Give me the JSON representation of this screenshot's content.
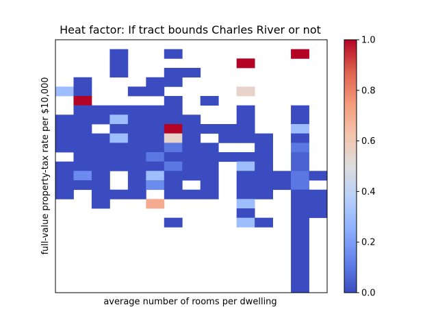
{
  "chart_data": {
    "type": "heatmap",
    "title": "Heat factor: If tract bounds Charles River or not",
    "xlabel": "average number of rooms per dwelling",
    "ylabel": "full-value property-tax rate per $10,000",
    "x_ticks_visible": false,
    "y_ticks_visible": false,
    "n_cols": 15,
    "n_rows": 27,
    "row_order": "top-to-bottom",
    "empty_value": null,
    "grid": [
      [
        null,
        null,
        null,
        null,
        null,
        null,
        null,
        null,
        null,
        null,
        null,
        null,
        null,
        null,
        null
      ],
      [
        null,
        null,
        null,
        0.0,
        null,
        null,
        0.0,
        null,
        null,
        null,
        null,
        null,
        null,
        1.0,
        null
      ],
      [
        null,
        null,
        null,
        0.0,
        null,
        null,
        null,
        null,
        null,
        null,
        1.0,
        null,
        null,
        null,
        null
      ],
      [
        null,
        null,
        null,
        0.0,
        null,
        null,
        0.0,
        0.0,
        null,
        null,
        null,
        null,
        null,
        null,
        null
      ],
      [
        null,
        0.0,
        null,
        null,
        null,
        0.0,
        0.0,
        null,
        null,
        null,
        null,
        null,
        null,
        null,
        null
      ],
      [
        0.3,
        0.0,
        null,
        null,
        0.0,
        0.0,
        null,
        null,
        null,
        null,
        0.55,
        null,
        null,
        null,
        null
      ],
      [
        null,
        1.0,
        null,
        null,
        null,
        null,
        0.0,
        null,
        0.0,
        null,
        null,
        null,
        null,
        null,
        null
      ],
      [
        null,
        0.0,
        0.0,
        0.0,
        0.0,
        0.0,
        0.0,
        null,
        null,
        null,
        0.0,
        null,
        null,
        0.0,
        null
      ],
      [
        0.0,
        0.0,
        0.0,
        0.3,
        0.0,
        0.0,
        0.0,
        0.0,
        null,
        null,
        0.0,
        null,
        null,
        0.0,
        null
      ],
      [
        0.0,
        0.0,
        null,
        0.0,
        0.0,
        0.0,
        1.0,
        0.0,
        0.0,
        0.0,
        0.0,
        null,
        null,
        0.3,
        null
      ],
      [
        0.0,
        0.0,
        0.0,
        0.3,
        0.0,
        0.0,
        0.55,
        0.0,
        null,
        0.0,
        0.0,
        0.0,
        null,
        0.0,
        null
      ],
      [
        0.0,
        0.0,
        0.0,
        0.0,
        0.0,
        0.0,
        0.1,
        0.0,
        0.0,
        null,
        null,
        0.0,
        null,
        0.1,
        null
      ],
      [
        null,
        0.0,
        0.0,
        0.0,
        0.0,
        0.1,
        0.0,
        0.0,
        0.0,
        0.0,
        0.0,
        0.0,
        null,
        0.05,
        null
      ],
      [
        0.0,
        0.0,
        0.0,
        0.0,
        0.0,
        0.0,
        0.1,
        0.0,
        0.0,
        null,
        0.3,
        0.0,
        null,
        0.05,
        null
      ],
      [
        0.0,
        0.15,
        0.0,
        null,
        0.0,
        0.3,
        0.0,
        0.0,
        0.0,
        null,
        0.0,
        0.0,
        0.0,
        0.1,
        0.0
      ],
      [
        0.0,
        0.0,
        0.0,
        null,
        0.0,
        0.15,
        0.0,
        null,
        0.0,
        null,
        0.0,
        0.0,
        0.0,
        0.1,
        null
      ],
      [
        0.0,
        null,
        0.0,
        0.0,
        0.0,
        null,
        0.0,
        0.0,
        0.0,
        null,
        0.0,
        0.0,
        null,
        0.0,
        0.0
      ],
      [
        null,
        null,
        0.0,
        null,
        null,
        0.7,
        null,
        null,
        null,
        null,
        0.3,
        null,
        null,
        0.0,
        0.0
      ],
      [
        null,
        null,
        null,
        null,
        null,
        null,
        null,
        null,
        null,
        null,
        0.0,
        null,
        null,
        0.0,
        0.0
      ],
      [
        null,
        null,
        null,
        null,
        null,
        null,
        0.0,
        null,
        null,
        null,
        0.3,
        0.0,
        null,
        0.0,
        null
      ],
      [
        null,
        null,
        null,
        null,
        null,
        null,
        null,
        null,
        null,
        null,
        null,
        null,
        null,
        0.0,
        null
      ],
      [
        null,
        null,
        null,
        null,
        null,
        null,
        null,
        null,
        null,
        null,
        null,
        null,
        null,
        0.0,
        null
      ],
      [
        null,
        null,
        null,
        null,
        null,
        null,
        null,
        null,
        null,
        null,
        null,
        null,
        null,
        0.0,
        null
      ],
      [
        null,
        null,
        null,
        null,
        null,
        null,
        null,
        null,
        null,
        null,
        null,
        null,
        null,
        0.0,
        null
      ],
      [
        null,
        null,
        null,
        null,
        null,
        null,
        null,
        null,
        null,
        null,
        null,
        null,
        null,
        0.0,
        null
      ],
      [
        null,
        null,
        null,
        null,
        null,
        null,
        null,
        null,
        null,
        null,
        null,
        null,
        null,
        0.0,
        null
      ],
      [
        null,
        null,
        null,
        null,
        null,
        null,
        null,
        null,
        null,
        null,
        null,
        null,
        null,
        0.0,
        null
      ]
    ],
    "colorbar": {
      "colormap": "coolwarm",
      "range": [
        0.0,
        1.0
      ],
      "ticks": [
        "0.0",
        "0.2",
        "0.4",
        "0.6",
        "0.8",
        "1.0"
      ]
    },
    "grid_lines": false,
    "legend": "none"
  }
}
